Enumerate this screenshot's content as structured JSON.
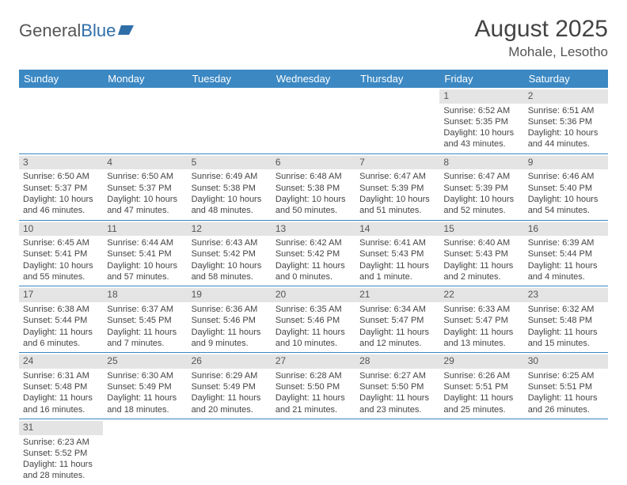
{
  "logo": {
    "part1": "General",
    "part2": "Blue"
  },
  "title": "August 2025",
  "location": "Mohale, Lesotho",
  "header_bg": "#3b88c3",
  "days_of_week": [
    "Sunday",
    "Monday",
    "Tuesday",
    "Wednesday",
    "Thursday",
    "Friday",
    "Saturday"
  ],
  "weeks": [
    [
      null,
      null,
      null,
      null,
      null,
      {
        "n": "1",
        "sr": "Sunrise: 6:52 AM",
        "ss": "Sunset: 5:35 PM",
        "d1": "Daylight: 10 hours",
        "d2": "and 43 minutes."
      },
      {
        "n": "2",
        "sr": "Sunrise: 6:51 AM",
        "ss": "Sunset: 5:36 PM",
        "d1": "Daylight: 10 hours",
        "d2": "and 44 minutes."
      }
    ],
    [
      {
        "n": "3",
        "sr": "Sunrise: 6:50 AM",
        "ss": "Sunset: 5:37 PM",
        "d1": "Daylight: 10 hours",
        "d2": "and 46 minutes."
      },
      {
        "n": "4",
        "sr": "Sunrise: 6:50 AM",
        "ss": "Sunset: 5:37 PM",
        "d1": "Daylight: 10 hours",
        "d2": "and 47 minutes."
      },
      {
        "n": "5",
        "sr": "Sunrise: 6:49 AM",
        "ss": "Sunset: 5:38 PM",
        "d1": "Daylight: 10 hours",
        "d2": "and 48 minutes."
      },
      {
        "n": "6",
        "sr": "Sunrise: 6:48 AM",
        "ss": "Sunset: 5:38 PM",
        "d1": "Daylight: 10 hours",
        "d2": "and 50 minutes."
      },
      {
        "n": "7",
        "sr": "Sunrise: 6:47 AM",
        "ss": "Sunset: 5:39 PM",
        "d1": "Daylight: 10 hours",
        "d2": "and 51 minutes."
      },
      {
        "n": "8",
        "sr": "Sunrise: 6:47 AM",
        "ss": "Sunset: 5:39 PM",
        "d1": "Daylight: 10 hours",
        "d2": "and 52 minutes."
      },
      {
        "n": "9",
        "sr": "Sunrise: 6:46 AM",
        "ss": "Sunset: 5:40 PM",
        "d1": "Daylight: 10 hours",
        "d2": "and 54 minutes."
      }
    ],
    [
      {
        "n": "10",
        "sr": "Sunrise: 6:45 AM",
        "ss": "Sunset: 5:41 PM",
        "d1": "Daylight: 10 hours",
        "d2": "and 55 minutes."
      },
      {
        "n": "11",
        "sr": "Sunrise: 6:44 AM",
        "ss": "Sunset: 5:41 PM",
        "d1": "Daylight: 10 hours",
        "d2": "and 57 minutes."
      },
      {
        "n": "12",
        "sr": "Sunrise: 6:43 AM",
        "ss": "Sunset: 5:42 PM",
        "d1": "Daylight: 10 hours",
        "d2": "and 58 minutes."
      },
      {
        "n": "13",
        "sr": "Sunrise: 6:42 AM",
        "ss": "Sunset: 5:42 PM",
        "d1": "Daylight: 11 hours",
        "d2": "and 0 minutes."
      },
      {
        "n": "14",
        "sr": "Sunrise: 6:41 AM",
        "ss": "Sunset: 5:43 PM",
        "d1": "Daylight: 11 hours",
        "d2": "and 1 minute."
      },
      {
        "n": "15",
        "sr": "Sunrise: 6:40 AM",
        "ss": "Sunset: 5:43 PM",
        "d1": "Daylight: 11 hours",
        "d2": "and 2 minutes."
      },
      {
        "n": "16",
        "sr": "Sunrise: 6:39 AM",
        "ss": "Sunset: 5:44 PM",
        "d1": "Daylight: 11 hours",
        "d2": "and 4 minutes."
      }
    ],
    [
      {
        "n": "17",
        "sr": "Sunrise: 6:38 AM",
        "ss": "Sunset: 5:44 PM",
        "d1": "Daylight: 11 hours",
        "d2": "and 6 minutes."
      },
      {
        "n": "18",
        "sr": "Sunrise: 6:37 AM",
        "ss": "Sunset: 5:45 PM",
        "d1": "Daylight: 11 hours",
        "d2": "and 7 minutes."
      },
      {
        "n": "19",
        "sr": "Sunrise: 6:36 AM",
        "ss": "Sunset: 5:46 PM",
        "d1": "Daylight: 11 hours",
        "d2": "and 9 minutes."
      },
      {
        "n": "20",
        "sr": "Sunrise: 6:35 AM",
        "ss": "Sunset: 5:46 PM",
        "d1": "Daylight: 11 hours",
        "d2": "and 10 minutes."
      },
      {
        "n": "21",
        "sr": "Sunrise: 6:34 AM",
        "ss": "Sunset: 5:47 PM",
        "d1": "Daylight: 11 hours",
        "d2": "and 12 minutes."
      },
      {
        "n": "22",
        "sr": "Sunrise: 6:33 AM",
        "ss": "Sunset: 5:47 PM",
        "d1": "Daylight: 11 hours",
        "d2": "and 13 minutes."
      },
      {
        "n": "23",
        "sr": "Sunrise: 6:32 AM",
        "ss": "Sunset: 5:48 PM",
        "d1": "Daylight: 11 hours",
        "d2": "and 15 minutes."
      }
    ],
    [
      {
        "n": "24",
        "sr": "Sunrise: 6:31 AM",
        "ss": "Sunset: 5:48 PM",
        "d1": "Daylight: 11 hours",
        "d2": "and 16 minutes."
      },
      {
        "n": "25",
        "sr": "Sunrise: 6:30 AM",
        "ss": "Sunset: 5:49 PM",
        "d1": "Daylight: 11 hours",
        "d2": "and 18 minutes."
      },
      {
        "n": "26",
        "sr": "Sunrise: 6:29 AM",
        "ss": "Sunset: 5:49 PM",
        "d1": "Daylight: 11 hours",
        "d2": "and 20 minutes."
      },
      {
        "n": "27",
        "sr": "Sunrise: 6:28 AM",
        "ss": "Sunset: 5:50 PM",
        "d1": "Daylight: 11 hours",
        "d2": "and 21 minutes."
      },
      {
        "n": "28",
        "sr": "Sunrise: 6:27 AM",
        "ss": "Sunset: 5:50 PM",
        "d1": "Daylight: 11 hours",
        "d2": "and 23 minutes."
      },
      {
        "n": "29",
        "sr": "Sunrise: 6:26 AM",
        "ss": "Sunset: 5:51 PM",
        "d1": "Daylight: 11 hours",
        "d2": "and 25 minutes."
      },
      {
        "n": "30",
        "sr": "Sunrise: 6:25 AM",
        "ss": "Sunset: 5:51 PM",
        "d1": "Daylight: 11 hours",
        "d2": "and 26 minutes."
      }
    ],
    [
      {
        "n": "31",
        "sr": "Sunrise: 6:23 AM",
        "ss": "Sunset: 5:52 PM",
        "d1": "Daylight: 11 hours",
        "d2": "and 28 minutes."
      },
      null,
      null,
      null,
      null,
      null,
      null
    ]
  ]
}
